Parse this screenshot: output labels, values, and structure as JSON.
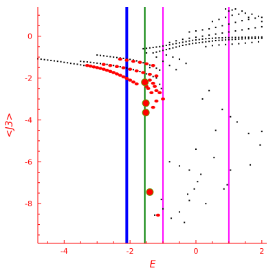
{
  "chart_data": {
    "type": "scatter",
    "xlabel": "E",
    "ylabel": "<J3>",
    "xlim": [
      -4.8,
      2.15
    ],
    "ylim": [
      -9.9,
      1.4
    ],
    "x_ticks": [
      -4,
      -2,
      0,
      2
    ],
    "y_ticks": [
      0,
      -2,
      -4,
      -6,
      -8
    ],
    "grid": false,
    "colors": {
      "axis": "#ff0000",
      "points_black": "#000000",
      "points_red": "#ff0000",
      "points_large": "#ff0000",
      "points_large_stroke": "#669900",
      "line_blue": "#0000ff",
      "line_green": "#008000",
      "line_magenta": "#ff00ff"
    },
    "vertical_lines": [
      {
        "x": -2.1,
        "color": "#0000ff",
        "style": "thick"
      },
      {
        "x": -1.55,
        "color": "#008000",
        "style": "normal"
      },
      {
        "x": -1.0,
        "color": "#ff00ff",
        "style": "normal"
      },
      {
        "x": 1.0,
        "color": "#ff00ff",
        "style": "normal"
      }
    ],
    "series": [
      {
        "color": "black",
        "points": [
          [
            -4.8,
            -1.08
          ],
          [
            -4.7,
            -1.1
          ],
          [
            -4.6,
            -1.12
          ],
          [
            -4.5,
            -1.14
          ],
          [
            -4.4,
            -1.16
          ],
          [
            -4.3,
            -1.18
          ],
          [
            -4.2,
            -1.2
          ],
          [
            -4.1,
            -1.22
          ],
          [
            -4.0,
            -1.25
          ],
          [
            -3.9,
            -1.27
          ],
          [
            -3.8,
            -1.3
          ],
          [
            -3.7,
            -1.32
          ],
          [
            -3.6,
            -1.34
          ],
          [
            -3.5,
            -1.37
          ],
          [
            -3.4,
            -1.4
          ],
          [
            -3.3,
            -1.43
          ],
          [
            -3.2,
            -1.46
          ],
          [
            -3.1,
            -1.49
          ],
          [
            -3.0,
            -1.52
          ],
          [
            -2.9,
            -1.55
          ],
          [
            -2.8,
            -1.58
          ],
          [
            -2.7,
            -1.62
          ],
          [
            -2.6,
            -1.66
          ],
          [
            -2.5,
            -1.7
          ],
          [
            -3.5,
            -1.2
          ],
          [
            -3.4,
            -1.22
          ],
          [
            -3.3,
            -1.23
          ],
          [
            -3.2,
            -1.25
          ],
          [
            -3.1,
            -1.27
          ],
          [
            -3.0,
            -1.29
          ],
          [
            -2.9,
            -1.31
          ],
          [
            -2.8,
            -1.33
          ],
          [
            -2.7,
            -1.35
          ],
          [
            -2.6,
            -1.38
          ],
          [
            -2.5,
            -1.4
          ],
          [
            -2.4,
            -1.43
          ],
          [
            -2.3,
            -1.46
          ],
          [
            -2.2,
            -1.49
          ],
          [
            -2.1,
            -1.52
          ],
          [
            -2.0,
            -1.56
          ],
          [
            -1.9,
            -1.6
          ],
          [
            -1.8,
            -1.64
          ],
          [
            -1.7,
            -1.69
          ],
          [
            -1.6,
            -1.74
          ],
          [
            -1.5,
            -1.8
          ],
          [
            -1.4,
            -1.86
          ],
          [
            -1.3,
            -1.93
          ],
          [
            -1.2,
            -2.0
          ],
          [
            -3.0,
            -0.9
          ],
          [
            -2.9,
            -0.92
          ],
          [
            -2.8,
            -0.94
          ],
          [
            -2.7,
            -0.96
          ],
          [
            -2.6,
            -0.98
          ],
          [
            -2.5,
            -1.0
          ],
          [
            -2.4,
            -1.02
          ],
          [
            -2.3,
            -1.04
          ],
          [
            -2.2,
            -1.06
          ],
          [
            -2.1,
            -1.08
          ],
          [
            -2.0,
            -1.11
          ],
          [
            -1.9,
            -1.14
          ],
          [
            -1.8,
            -1.18
          ],
          [
            -1.7,
            -1.22
          ],
          [
            -1.6,
            -1.27
          ],
          [
            -1.5,
            -1.32
          ],
          [
            -1.4,
            -1.38
          ],
          [
            -1.3,
            -1.45
          ],
          [
            -1.2,
            -1.53
          ],
          [
            -1.1,
            -1.62
          ],
          [
            -1.6,
            -0.6
          ],
          [
            -1.5,
            -0.58
          ],
          [
            -1.4,
            -0.56
          ],
          [
            -1.3,
            -0.54
          ],
          [
            -1.2,
            -0.52
          ],
          [
            -1.1,
            -0.5
          ],
          [
            -1.0,
            -0.47
          ],
          [
            -0.9,
            -0.44
          ],
          [
            -0.8,
            -0.41
          ],
          [
            -0.7,
            -0.38
          ],
          [
            -0.6,
            -0.35
          ],
          [
            -0.5,
            -0.32
          ],
          [
            -0.4,
            -0.29
          ],
          [
            -0.3,
            -0.26
          ],
          [
            -0.2,
            -0.23
          ],
          [
            -0.1,
            -0.2
          ],
          [
            0.0,
            -0.18
          ],
          [
            0.1,
            -0.16
          ],
          [
            0.2,
            -0.14
          ],
          [
            0.3,
            -0.12
          ],
          [
            0.4,
            -0.11
          ],
          [
            0.5,
            -0.1
          ],
          [
            0.6,
            -0.09
          ],
          [
            0.7,
            -0.08
          ],
          [
            0.8,
            -0.08
          ],
          [
            0.9,
            -0.07
          ],
          [
            1.0,
            -0.07
          ],
          [
            1.1,
            -0.06
          ],
          [
            1.2,
            -0.06
          ],
          [
            1.3,
            -0.06
          ],
          [
            1.4,
            -0.05
          ],
          [
            1.5,
            -0.05
          ],
          [
            1.6,
            -0.05
          ],
          [
            1.7,
            -0.05
          ],
          [
            1.8,
            -0.04
          ],
          [
            1.9,
            -0.04
          ],
          [
            2.0,
            -0.04
          ],
          [
            -1.3,
            -0.8
          ],
          [
            -1.2,
            -0.76
          ],
          [
            -1.1,
            -0.72
          ],
          [
            -1.0,
            -0.68
          ],
          [
            -0.9,
            -0.64
          ],
          [
            -0.8,
            -0.6
          ],
          [
            -0.7,
            -0.56
          ],
          [
            -0.6,
            -0.52
          ],
          [
            -0.5,
            -0.48
          ],
          [
            -0.4,
            -0.44
          ],
          [
            -0.3,
            -0.41
          ],
          [
            -0.2,
            -0.38
          ],
          [
            -0.1,
            -0.35
          ],
          [
            0.0,
            -0.33
          ],
          [
            0.1,
            -0.31
          ],
          [
            0.2,
            -0.29
          ],
          [
            0.3,
            -0.27
          ],
          [
            0.4,
            -0.25
          ],
          [
            0.5,
            -0.23
          ],
          [
            0.6,
            -0.21
          ],
          [
            0.7,
            -0.2
          ],
          [
            0.8,
            -0.19
          ],
          [
            0.9,
            -0.18
          ],
          [
            1.0,
            -0.17
          ],
          [
            1.1,
            -0.16
          ],
          [
            1.2,
            -0.15
          ],
          [
            1.3,
            -0.14
          ],
          [
            1.4,
            -0.13
          ],
          [
            1.5,
            -0.12
          ],
          [
            1.6,
            -0.12
          ],
          [
            1.7,
            -0.11
          ],
          [
            1.8,
            -0.11
          ],
          [
            1.9,
            -0.1
          ],
          [
            2.0,
            -0.1
          ],
          [
            -0.8,
            -0.3
          ],
          [
            -0.6,
            -0.22
          ],
          [
            -0.4,
            -0.15
          ],
          [
            -0.2,
            -0.1
          ],
          [
            0.0,
            -0.05
          ],
          [
            0.2,
            0.0
          ],
          [
            0.4,
            0.05
          ],
          [
            0.6,
            0.1
          ],
          [
            0.8,
            0.15
          ],
          [
            1.0,
            0.2
          ],
          [
            1.2,
            0.25
          ],
          [
            1.4,
            0.3
          ],
          [
            1.6,
            0.35
          ],
          [
            1.8,
            0.4
          ],
          [
            2.0,
            0.45
          ],
          [
            -0.2,
            0.2
          ],
          [
            0.0,
            0.25
          ],
          [
            0.2,
            0.3
          ],
          [
            0.4,
            0.35
          ],
          [
            0.6,
            0.42
          ],
          [
            0.8,
            0.5
          ],
          [
            1.0,
            0.58
          ],
          [
            1.2,
            0.66
          ],
          [
            1.4,
            0.74
          ],
          [
            1.6,
            0.8
          ],
          [
            1.8,
            0.86
          ],
          [
            2.0,
            0.9
          ],
          [
            0.5,
            0.7
          ],
          [
            0.7,
            0.8
          ],
          [
            0.9,
            0.9
          ],
          [
            1.1,
            1.0
          ],
          [
            1.3,
            1.05
          ],
          [
            1.5,
            1.1
          ],
          [
            1.7,
            1.05
          ],
          [
            1.9,
            0.95
          ],
          [
            0.9,
            1.3
          ],
          [
            1.0,
            1.2
          ],
          [
            1.1,
            1.25
          ],
          [
            1.2,
            1.3
          ],
          [
            1.4,
            1.2
          ],
          [
            1.6,
            0.9
          ],
          [
            2.0,
            0.7
          ],
          [
            0.3,
            -0.5
          ],
          [
            0.5,
            -0.45
          ],
          [
            0.7,
            -0.42
          ],
          [
            0.9,
            -0.4
          ],
          [
            1.1,
            -0.38
          ],
          [
            1.3,
            -0.36
          ],
          [
            1.5,
            -0.33
          ],
          [
            1.7,
            -0.3
          ],
          [
            1.9,
            -0.27
          ],
          [
            -0.9,
            -0.9
          ],
          [
            -0.7,
            -1.0
          ],
          [
            -0.5,
            -1.1
          ],
          [
            -0.3,
            -1.3
          ],
          [
            -1.0,
            -1.2
          ],
          [
            -0.8,
            -1.4
          ],
          [
            -0.6,
            -1.6
          ],
          [
            -1.4,
            -1.5
          ],
          [
            -1.5,
            -0.8
          ],
          [
            -1.2,
            -1.0
          ],
          [
            -1.1,
            -2.3
          ],
          [
            -1.05,
            -2.5
          ],
          [
            0.4,
            -2.6
          ],
          [
            0.2,
            -3.0
          ],
          [
            0.8,
            -3.5
          ],
          [
            1.05,
            -3.85
          ],
          [
            1.25,
            -4.1
          ],
          [
            0.6,
            -4.5
          ],
          [
            1.6,
            -4.65
          ],
          [
            2.0,
            -4.55
          ],
          [
            0.0,
            -5.4
          ],
          [
            0.55,
            -5.8
          ],
          [
            1.95,
            -5.2
          ],
          [
            1.65,
            -6.15
          ],
          [
            1.05,
            -6.4
          ],
          [
            0.95,
            -7.1
          ],
          [
            0.85,
            -7.3
          ],
          [
            -0.2,
            -6.4
          ],
          [
            0.15,
            -6.6
          ],
          [
            -0.5,
            -6.2
          ],
          [
            -0.8,
            -6.0
          ],
          [
            0.05,
            -6.95
          ],
          [
            -0.05,
            -7.3
          ],
          [
            -0.25,
            -7.55
          ],
          [
            -1.05,
            -7.8
          ],
          [
            -0.2,
            -7.85
          ],
          [
            0.3,
            -8.0
          ],
          [
            -0.5,
            -8.4
          ],
          [
            -1.0,
            -8.25
          ],
          [
            -0.75,
            -8.7
          ],
          [
            -0.35,
            -8.9
          ],
          [
            -1.25,
            -8.55
          ]
        ]
      },
      {
        "color": "red",
        "points": [
          [
            -3.3,
            -1.4
          ],
          [
            -3.2,
            -1.43
          ],
          [
            -3.1,
            -1.47
          ],
          [
            -3.0,
            -1.5
          ],
          [
            -2.9,
            -1.54
          ],
          [
            -2.8,
            -1.58
          ],
          [
            -2.7,
            -1.63
          ],
          [
            -2.6,
            -1.68
          ],
          [
            -2.5,
            -1.74
          ],
          [
            -2.4,
            -1.8
          ],
          [
            -2.3,
            -1.87
          ],
          [
            -2.2,
            -1.94
          ],
          [
            -2.1,
            -2.02
          ],
          [
            -2.0,
            -2.1
          ],
          [
            -1.9,
            -2.19
          ],
          [
            -1.8,
            -2.28
          ],
          [
            -2.8,
            -1.35
          ],
          [
            -2.6,
            -1.4
          ],
          [
            -2.4,
            -1.45
          ],
          [
            -2.2,
            -1.51
          ],
          [
            -2.0,
            -1.58
          ],
          [
            -1.8,
            -1.66
          ],
          [
            -1.6,
            -1.74
          ],
          [
            -1.4,
            -1.82
          ],
          [
            -1.2,
            -1.9
          ],
          [
            -2.3,
            -1.1
          ],
          [
            -2.1,
            -1.15
          ],
          [
            -1.9,
            -1.2
          ],
          [
            -1.7,
            -1.25
          ],
          [
            -1.5,
            -1.32
          ],
          [
            -1.3,
            -1.4
          ],
          [
            -1.4,
            -2.1
          ],
          [
            -1.3,
            -2.25
          ],
          [
            -1.25,
            -2.4
          ],
          [
            -1.2,
            -2.6
          ],
          [
            -1.1,
            -2.7
          ],
          [
            -1.0,
            -3.0
          ],
          [
            -1.2,
            -3.1
          ],
          [
            -1.3,
            -3.4
          ],
          [
            -1.5,
            -3.6
          ],
          [
            -1.5,
            -2.4
          ],
          [
            -1.45,
            -2.5
          ],
          [
            -1.35,
            -2.7
          ],
          [
            -1.15,
            -8.55
          ]
        ]
      },
      {
        "color": "red-large",
        "points": [
          [
            -1.55,
            -2.2
          ],
          [
            -1.52,
            -3.2
          ],
          [
            -1.52,
            -3.65
          ],
          [
            -1.4,
            -7.45
          ]
        ]
      }
    ]
  }
}
